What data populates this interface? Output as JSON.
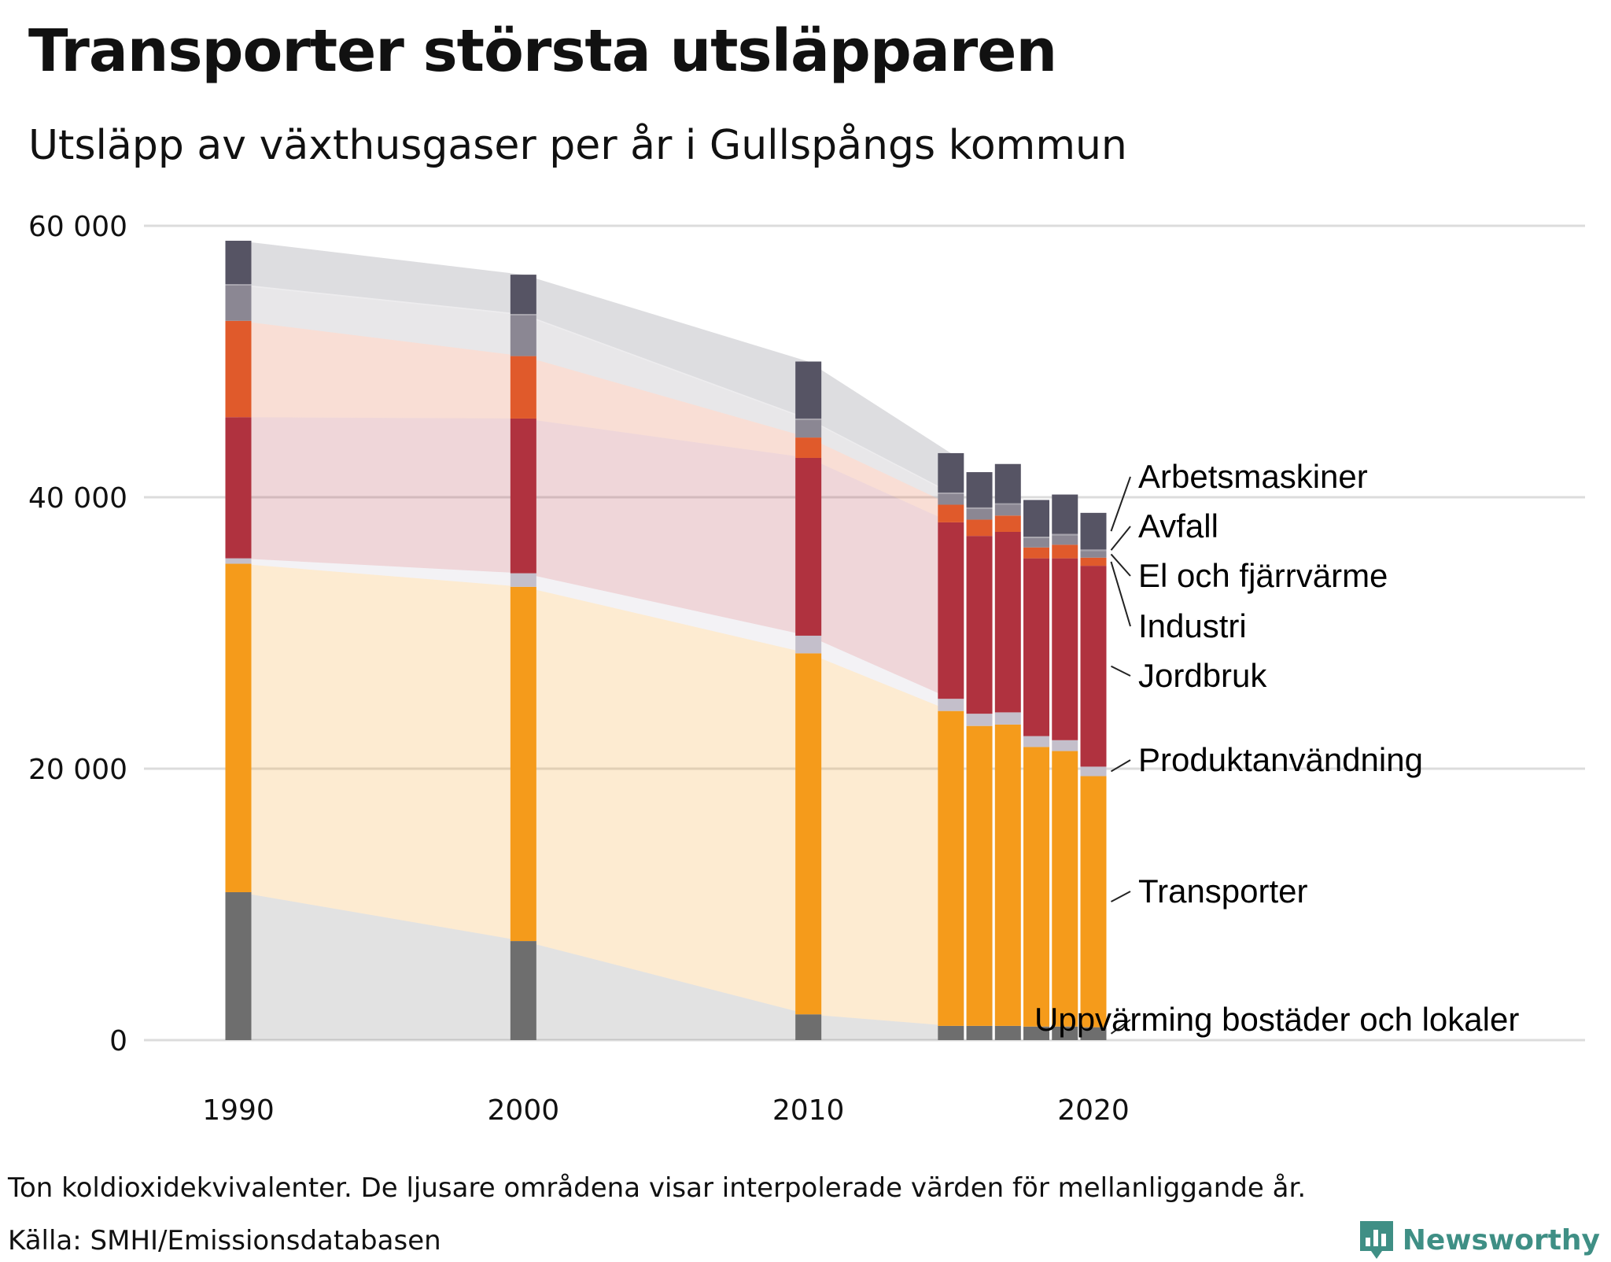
{
  "title": "Transporter största utsläpparen",
  "subtitle": "Utsläpp av växthusgaser per år i Gullspångs kommun",
  "note": "Ton koldioxidekvivalenter. De ljusare områdena visar interpolerade värden för mellanliggande år.",
  "source": "Källa: SMHI/Emissionsdatabasen",
  "brand": "Newsworthy",
  "chart_data": {
    "type": "bar",
    "stacked": true,
    "interpolated_areas": true,
    "years": [
      1990,
      2000,
      2010,
      2015,
      2016,
      2017,
      2018,
      2019,
      2020
    ],
    "x_ticks": [
      1990,
      2000,
      2010,
      2020
    ],
    "y_ticks": [
      0,
      20000,
      40000,
      60000
    ],
    "y_tick_labels": [
      "0",
      "20 000",
      "40 000",
      "60 000"
    ],
    "ylim": [
      0,
      60000
    ],
    "grid": true,
    "series": [
      {
        "name": "Uppvärming bostäder och lokaler",
        "color": "#6e6e6e",
        "values": [
          10900,
          7300,
          1900,
          1050,
          1050,
          1050,
          1000,
          1000,
          950
        ]
      },
      {
        "name": "Transporter",
        "color": "#f59b1b",
        "values": [
          24200,
          26100,
          26600,
          23200,
          22100,
          22200,
          20600,
          20300,
          18500
        ]
      },
      {
        "name": "Produktanvändning",
        "color": "#c4bfcb",
        "values": [
          400,
          1000,
          1300,
          900,
          900,
          900,
          800,
          800,
          700
        ]
      },
      {
        "name": "Jordbruk",
        "color": "#b0323f",
        "values": [
          10400,
          11400,
          13100,
          13000,
          13100,
          13300,
          13100,
          13400,
          14800
        ]
      },
      {
        "name": "Industri",
        "color": "#e05a2b",
        "values": [
          7100,
          4600,
          1500,
          1300,
          1200,
          1200,
          800,
          1000,
          600
        ]
      },
      {
        "name": "El och fjärrvärme",
        "color": "#8b8793",
        "values": [
          2600,
          3000,
          1300,
          800,
          800,
          800,
          700,
          700,
          500
        ]
      },
      {
        "name": "Avfall",
        "color": "#a5a2ab",
        "values": [
          100,
          100,
          100,
          100,
          100,
          100,
          100,
          100,
          100
        ]
      },
      {
        "name": "Arbetsmaskiner",
        "color": "#565464",
        "values": [
          3200,
          2900,
          4200,
          2900,
          2600,
          2900,
          2700,
          2900,
          2700
        ]
      }
    ]
  }
}
